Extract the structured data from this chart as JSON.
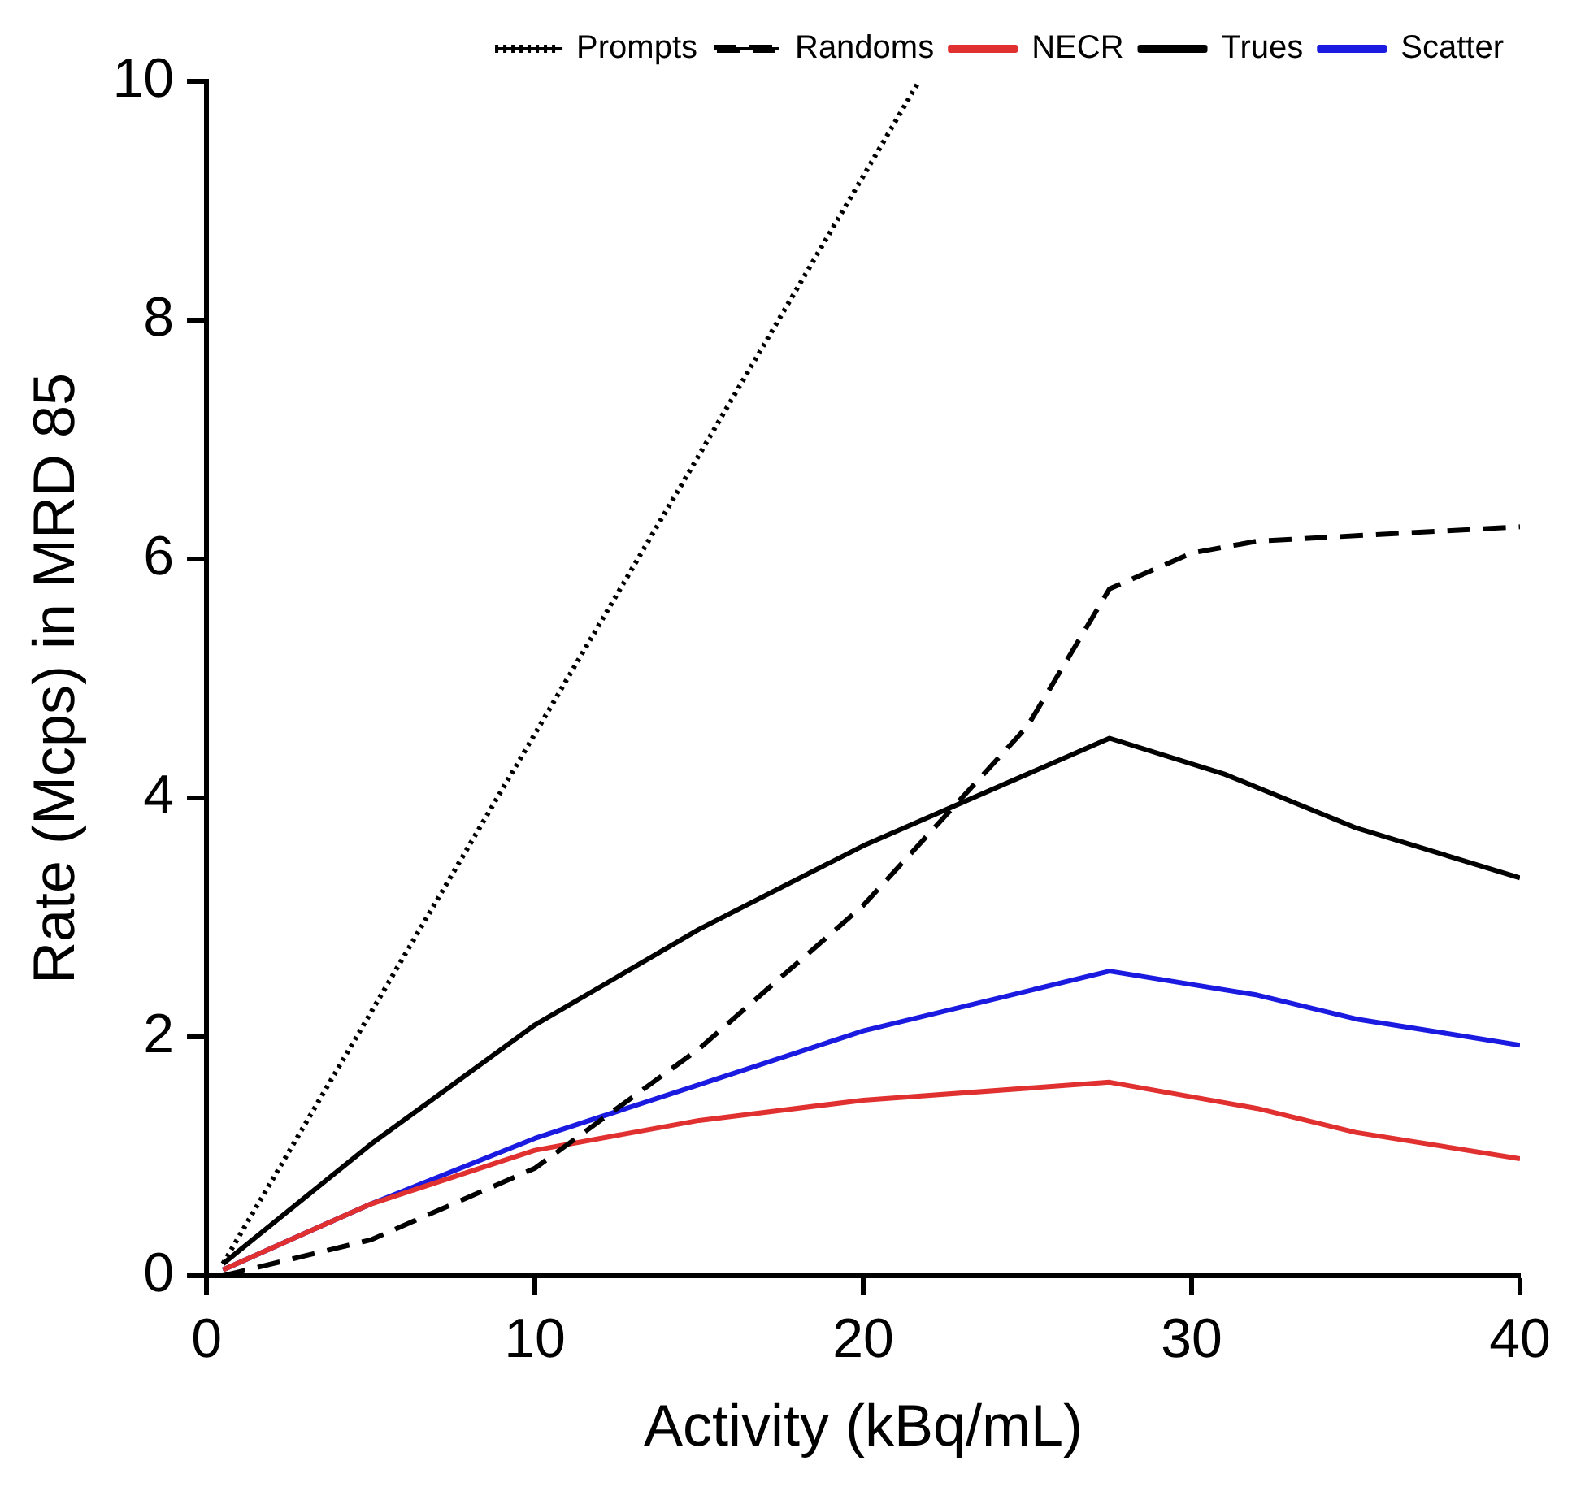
{
  "chart_data": {
    "type": "line",
    "xlabel": "Activity (kBq/mL)",
    "ylabel": "Rate (Mcps) in MRD 85",
    "xlim": [
      0,
      40
    ],
    "ylim": [
      0,
      10
    ],
    "xticks": [
      0,
      10,
      20,
      30,
      40
    ],
    "yticks": [
      0,
      2,
      4,
      6,
      8,
      10
    ],
    "grid": false,
    "legend": "top right",
    "marker": "none",
    "series": [
      {
        "name": "Prompts",
        "color": "#000000",
        "line_style": "dotted",
        "x": [
          0.5,
          21.7
        ],
        "values": [
          0.1,
          10
        ]
      },
      {
        "name": "Randoms",
        "color": "#000000",
        "line_style": "dashed",
        "x": [
          0.5,
          5,
          10,
          15,
          20,
          25,
          27.5,
          30,
          32,
          40
        ],
        "values": [
          0,
          0.3,
          0.9,
          1.9,
          3.1,
          4.6,
          5.75,
          6.05,
          6.15,
          6.27
        ]
      },
      {
        "name": "NECR",
        "color": "#e03030",
        "line_style": "solid",
        "x": [
          0.5,
          5,
          10,
          15,
          20,
          27.5,
          32,
          35,
          40
        ],
        "values": [
          0.05,
          0.6,
          1.05,
          1.3,
          1.47,
          1.62,
          1.4,
          1.2,
          0.98
        ]
      },
      {
        "name": "Trues",
        "color": "#000000",
        "line_style": "solid",
        "x": [
          0.5,
          5,
          10,
          15,
          20,
          27.5,
          31,
          35,
          40
        ],
        "values": [
          0.1,
          1.1,
          2.1,
          2.9,
          3.6,
          4.5,
          4.2,
          3.75,
          3.33
        ]
      },
      {
        "name": "Scatter",
        "color": "#1a1ae0",
        "line_style": "solid",
        "x": [
          0.5,
          5,
          10,
          15,
          20,
          27.5,
          32,
          35,
          40
        ],
        "values": [
          0.05,
          0.6,
          1.15,
          1.6,
          2.05,
          2.55,
          2.35,
          2.15,
          1.93
        ]
      }
    ]
  }
}
